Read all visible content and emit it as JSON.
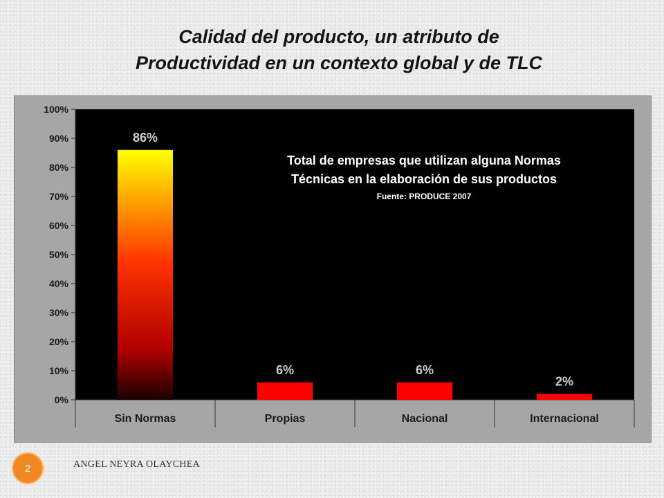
{
  "slide": {
    "title_line1": "Calidad del producto, un atributo de",
    "title_line2": "Productividad en un contexto global y de TLC",
    "page_number": "2",
    "author": "ANGEL NEYRA OLAYCHEA"
  },
  "chart_data": {
    "type": "bar",
    "categories": [
      "Sin Normas",
      "Propias",
      "Nacional",
      "Internacional"
    ],
    "values": [
      86,
      6,
      6,
      2
    ],
    "value_labels": [
      "86%",
      "6%",
      "6%",
      "2%"
    ],
    "y_ticks": [
      "0%",
      "10%",
      "20%",
      "30%",
      "40%",
      "50%",
      "60%",
      "70%",
      "80%",
      "90%",
      "100%"
    ],
    "ylim": [
      0,
      100
    ],
    "annotation_line1": "Total de empresas que utilizan alguna Normas",
    "annotation_line2": "Técnicas en la elaboración de sus productos",
    "annotation_source": "Fuente: PRODUCE 2007",
    "colors": {
      "plot_bg": "#000000",
      "outer_bg": "#a6a6a6",
      "bar": "#ff0000",
      "gradient_top": "#ffff00",
      "gradient_mid": "#ff3300",
      "gradient_bottom": "#1a0000"
    },
    "grid": false
  }
}
